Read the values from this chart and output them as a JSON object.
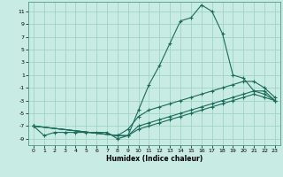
{
  "xlabel": "Humidex (Indice chaleur)",
  "bg_color": "#c8ece4",
  "line_color": "#1a6b5a",
  "xlim": [
    -0.5,
    23.5
  ],
  "ylim": [
    -10,
    12.5
  ],
  "yticks": [
    -9,
    -7,
    -5,
    -3,
    -1,
    1,
    3,
    5,
    7,
    9,
    11
  ],
  "xticks": [
    0,
    1,
    2,
    3,
    4,
    5,
    6,
    7,
    8,
    9,
    10,
    11,
    12,
    13,
    14,
    15,
    16,
    17,
    18,
    19,
    20,
    21,
    22,
    23
  ],
  "line1_x": [
    0,
    1,
    2,
    3,
    4,
    5,
    6,
    7,
    8,
    9,
    10,
    11,
    12,
    13,
    14,
    15,
    16,
    17,
    18,
    19,
    20,
    21,
    22,
    23
  ],
  "line1_y": [
    -7,
    -8.5,
    -8,
    -8,
    -8,
    -8,
    -8,
    -8,
    -9,
    -8.5,
    -4.5,
    -0.5,
    2.5,
    6,
    9.5,
    10,
    12,
    11,
    7.5,
    1,
    0.5,
    -1.5,
    -1.5,
    -3
  ],
  "line2_x": [
    0,
    8,
    9,
    10,
    11,
    12,
    13,
    14,
    15,
    16,
    17,
    18,
    19,
    20,
    21,
    22,
    23
  ],
  "line2_y": [
    -7,
    -8.5,
    -7.5,
    -5.5,
    -4.5,
    -4,
    -3.5,
    -3,
    -2.5,
    -2,
    -1.5,
    -1,
    -0.5,
    0,
    0,
    -1,
    -2.5
  ],
  "line3_x": [
    0,
    8,
    9,
    10,
    11,
    12,
    13,
    14,
    15,
    16,
    17,
    18,
    19,
    20,
    21,
    22,
    23
  ],
  "line3_y": [
    -7,
    -8.5,
    -8.5,
    -7,
    -6.5,
    -6,
    -5.5,
    -5,
    -4.5,
    -4,
    -3.5,
    -3,
    -2.5,
    -2,
    -1.5,
    -2,
    -3
  ],
  "line4_x": [
    0,
    8,
    9,
    10,
    11,
    12,
    13,
    14,
    15,
    16,
    17,
    18,
    19,
    20,
    21,
    22,
    23
  ],
  "line4_y": [
    -7,
    -8.5,
    -8.5,
    -7.5,
    -7,
    -6.5,
    -6,
    -5.5,
    -5,
    -4.5,
    -4,
    -3.5,
    -3,
    -2.5,
    -2,
    -2.5,
    -3
  ]
}
